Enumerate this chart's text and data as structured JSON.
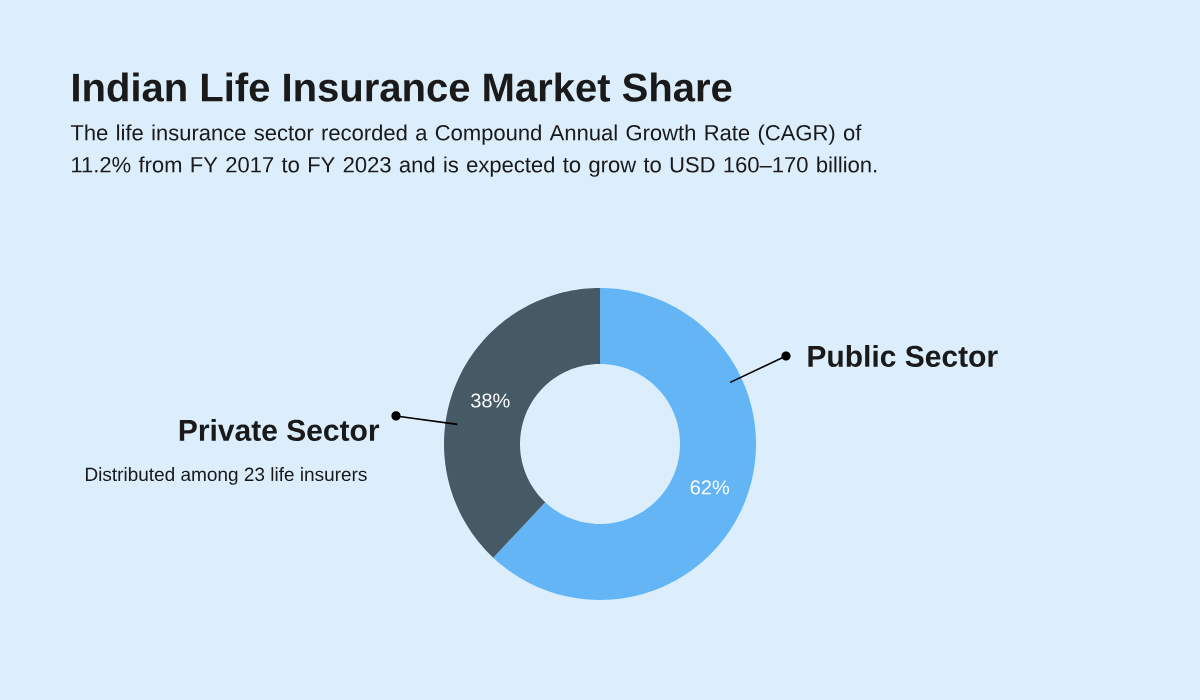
{
  "chart_data": {
    "type": "donut",
    "title": "Indian Life Insurance Market Share",
    "subtitle": "The life insurance sector recorded a Compound Annual Growth Rate (CAGR) of 11.2% from FY 2017 to FY 2023 and is expected to grow to USD 160–170 billion.",
    "categories": [
      "Public Sector",
      "Private Sector"
    ],
    "values": [
      62,
      38
    ],
    "colors": [
      "#64b5f6",
      "#455a64"
    ],
    "value_labels": [
      "62%",
      "38%"
    ],
    "annotations": [
      "Distributed among 23 life insurers"
    ]
  }
}
